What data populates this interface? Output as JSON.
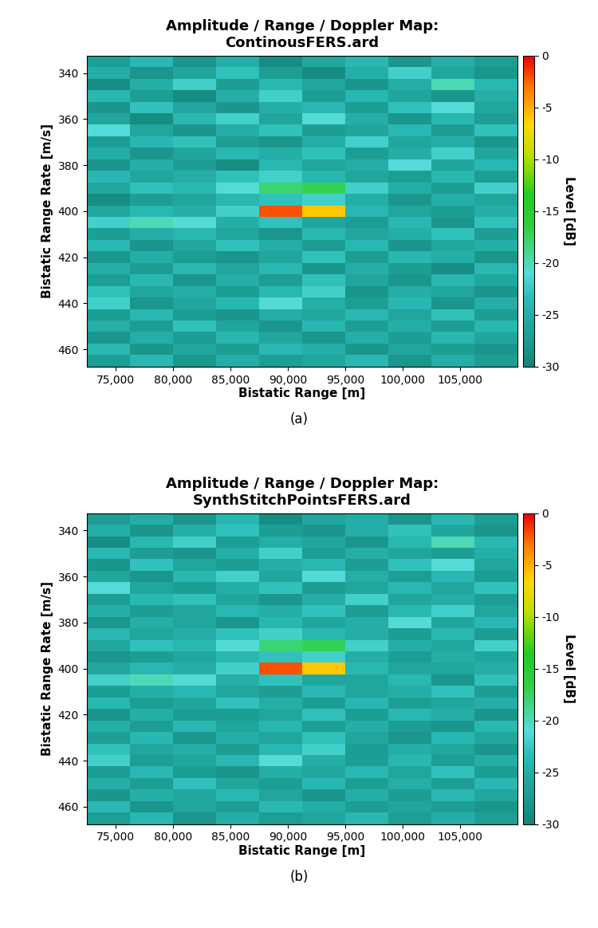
{
  "chart_data": [
    {
      "type": "heatmap",
      "title": "Amplitude / Range / Doppler Map:\nContinousFERS.ard",
      "caption": "(a)",
      "x_label": "Bistatic Range [m]",
      "y_label": "Bistatic Range Rate [m/s]",
      "colorbar_label": "Level [dB]",
      "xlim": [
        72500,
        110000
      ],
      "ylim": [
        467.5,
        332.5
      ],
      "xticks": [
        {
          "value": 75000,
          "label": "75,000"
        },
        {
          "value": 80000,
          "label": "80,000"
        },
        {
          "value": 85000,
          "label": "85,000"
        },
        {
          "value": 90000,
          "label": "90,000"
        },
        {
          "value": 95000,
          "label": "95,000"
        },
        {
          "value": 100000,
          "label": "100,000"
        },
        {
          "value": 105000,
          "label": "105,000"
        }
      ],
      "yticks": [
        340,
        360,
        380,
        400,
        420,
        440,
        460
      ],
      "x_edges": [
        72500,
        76250,
        80000,
        83750,
        87500,
        91250,
        95000,
        98750,
        102500,
        106250,
        110000
      ],
      "y_edges": [
        332.5,
        337.5,
        342.5,
        347.5,
        352.5,
        357.5,
        362.5,
        367.5,
        372.5,
        377.5,
        382.5,
        387.5,
        392.5,
        397.5,
        402.5,
        407.5,
        412.5,
        417.5,
        422.5,
        427.5,
        432.5,
        437.5,
        442.5,
        447.5,
        452.5,
        457.5,
        462.5,
        467.5
      ],
      "cells": [
        [
          -27,
          -24,
          -28,
          -25,
          -29,
          -26,
          -24,
          -28,
          -25,
          -27
        ],
        [
          -25,
          -28,
          -26,
          -23,
          -27,
          -29,
          -25,
          -22,
          -26,
          -28
        ],
        [
          -29,
          -25,
          -22,
          -27,
          -24,
          -26,
          -28,
          -25,
          -20,
          -24
        ],
        [
          -24,
          -27,
          -29,
          -25,
          -22,
          -27,
          -24,
          -26,
          -28,
          -25
        ],
        [
          -28,
          -23,
          -26,
          -28,
          -25,
          -24,
          -27,
          -23,
          -21,
          -26
        ],
        [
          -26,
          -29,
          -24,
          -22,
          -26,
          -21,
          -25,
          -28,
          -24,
          -27
        ],
        [
          -21,
          -26,
          -28,
          -25,
          -23,
          -27,
          -26,
          -24,
          -27,
          -23
        ],
        [
          -27,
          -24,
          -23,
          -27,
          -28,
          -25,
          -22,
          -26,
          -25,
          -28
        ],
        [
          -25,
          -28,
          -26,
          -24,
          -25,
          -23,
          -27,
          -25,
          -22,
          -26
        ],
        [
          -28,
          -25,
          -27,
          -29,
          -24,
          -26,
          -25,
          -21,
          -26,
          -24
        ],
        [
          -24,
          -26,
          -25,
          -23,
          -22,
          -24,
          -26,
          -27,
          -24,
          -27
        ],
        [
          -26,
          -23,
          -24,
          -21,
          -18,
          -17,
          -22,
          -25,
          -27,
          -22
        ],
        [
          -29,
          -27,
          -26,
          -24,
          -23,
          -22,
          -25,
          -28,
          -25,
          -26
        ],
        [
          -26,
          -24,
          -25,
          -22,
          -2,
          -6,
          -24,
          -26,
          -27,
          -25
        ],
        [
          -22,
          -20,
          -21,
          -25,
          -23,
          -26,
          -27,
          -24,
          -28,
          -23
        ],
        [
          -27,
          -25,
          -24,
          -26,
          -28,
          -24,
          -26,
          -25,
          -23,
          -27
        ],
        [
          -24,
          -28,
          -26,
          -23,
          -25,
          -27,
          -24,
          -28,
          -26,
          -25
        ],
        [
          -28,
          -25,
          -27,
          -28,
          -26,
          -23,
          -27,
          -24,
          -25,
          -28
        ],
        [
          -25,
          -27,
          -24,
          -26,
          -24,
          -28,
          -25,
          -27,
          -29,
          -24
        ],
        [
          -27,
          -24,
          -28,
          -25,
          -27,
          -23,
          -26,
          -28,
          -24,
          -26
        ],
        [
          -23,
          -26,
          -25,
          -27,
          -24,
          -22,
          -28,
          -25,
          -26,
          -28
        ],
        [
          -22,
          -28,
          -26,
          -24,
          -21,
          -25,
          -27,
          -24,
          -28,
          -25
        ],
        [
          -27,
          -24,
          -27,
          -28,
          -25,
          -26,
          -24,
          -26,
          -23,
          -27
        ],
        [
          -25,
          -27,
          -23,
          -26,
          -28,
          -24,
          -27,
          -25,
          -27,
          -24
        ],
        [
          -28,
          -25,
          -27,
          -24,
          -26,
          -28,
          -25,
          -27,
          -24,
          -26
        ],
        [
          -24,
          -28,
          -26,
          -27,
          -24,
          -25,
          -28,
          -26,
          -27,
          -28
        ],
        [
          -27,
          -24,
          -28,
          -25,
          -27,
          -26,
          -24,
          -28,
          -25,
          -27
        ]
      ],
      "colorbar_range": [
        -30,
        0
      ],
      "colorbar_ticks": [
        0,
        -5,
        -10,
        -15,
        -20,
        -25,
        -30
      ]
    },
    {
      "type": "heatmap",
      "title": "Amplitude / Range / Doppler Map:\nSynthStitchPointsFERS.ard",
      "caption": "(b)",
      "x_label": "Bistatic Range [m]",
      "y_label": "Bistatic Range Rate [m/s]",
      "colorbar_label": "Level [dB]",
      "xlim": [
        72500,
        110000
      ],
      "ylim": [
        467.5,
        332.5
      ],
      "xticks": [
        {
          "value": 75000,
          "label": "75,000"
        },
        {
          "value": 80000,
          "label": "80,000"
        },
        {
          "value": 85000,
          "label": "85,000"
        },
        {
          "value": 90000,
          "label": "90,000"
        },
        {
          "value": 95000,
          "label": "95,000"
        },
        {
          "value": 100000,
          "label": "100,000"
        },
        {
          "value": 105000,
          "label": "105,000"
        }
      ],
      "yticks": [
        340,
        360,
        380,
        400,
        420,
        440,
        460
      ],
      "x_edges": [
        72500,
        76250,
        80000,
        83750,
        87500,
        91250,
        95000,
        98750,
        102500,
        106250,
        110000
      ],
      "y_edges": [
        332.5,
        337.5,
        342.5,
        347.5,
        352.5,
        357.5,
        362.5,
        367.5,
        372.5,
        377.5,
        382.5,
        387.5,
        392.5,
        397.5,
        402.5,
        407.5,
        412.5,
        417.5,
        422.5,
        427.5,
        432.5,
        437.5,
        442.5,
        447.5,
        452.5,
        457.5,
        462.5,
        467.5
      ],
      "cells": [
        [
          -27,
          -25,
          -28,
          -24,
          -29,
          -26,
          -25,
          -28,
          -24,
          -27
        ],
        [
          -25,
          -28,
          -25,
          -23,
          -27,
          -28,
          -25,
          -23,
          -26,
          -28
        ],
        [
          -29,
          -24,
          -22,
          -27,
          -25,
          -26,
          -28,
          -24,
          -20,
          -24
        ],
        [
          -24,
          -27,
          -28,
          -25,
          -22,
          -27,
          -25,
          -26,
          -27,
          -25
        ],
        [
          -28,
          -23,
          -26,
          -27,
          -25,
          -24,
          -27,
          -23,
          -21,
          -26
        ],
        [
          -26,
          -28,
          -24,
          -22,
          -26,
          -21,
          -25,
          -27,
          -24,
          -27
        ],
        [
          -21,
          -26,
          -27,
          -25,
          -23,
          -27,
          -26,
          -24,
          -26,
          -23
        ],
        [
          -27,
          -24,
          -23,
          -26,
          -28,
          -25,
          -22,
          -26,
          -25,
          -27
        ],
        [
          -25,
          -27,
          -26,
          -24,
          -25,
          -23,
          -27,
          -24,
          -22,
          -26
        ],
        [
          -28,
          -25,
          -26,
          -28,
          -24,
          -26,
          -25,
          -21,
          -26,
          -24
        ],
        [
          -24,
          -26,
          -25,
          -23,
          -22,
          -24,
          -25,
          -27,
          -24,
          -27
        ],
        [
          -26,
          -23,
          -24,
          -21,
          -18,
          -17,
          -22,
          -25,
          -26,
          -22
        ],
        [
          -28,
          -27,
          -26,
          -24,
          -23,
          -22,
          -25,
          -27,
          -25,
          -26
        ],
        [
          -26,
          -24,
          -25,
          -22,
          -2,
          -6,
          -24,
          -26,
          -26,
          -25
        ],
        [
          -22,
          -20,
          -21,
          -25,
          -23,
          -26,
          -26,
          -24,
          -28,
          -23
        ],
        [
          -27,
          -25,
          -24,
          -26,
          -27,
          -24,
          -26,
          -25,
          -23,
          -27
        ],
        [
          -24,
          -27,
          -26,
          -23,
          -25,
          -27,
          -24,
          -27,
          -26,
          -25
        ],
        [
          -28,
          -25,
          -27,
          -27,
          -26,
          -23,
          -27,
          -24,
          -25,
          -28
        ],
        [
          -25,
          -27,
          -24,
          -26,
          -24,
          -27,
          -25,
          -27,
          -28,
          -24
        ],
        [
          -27,
          -24,
          -28,
          -25,
          -26,
          -23,
          -26,
          -28,
          -24,
          -26
        ],
        [
          -23,
          -26,
          -25,
          -27,
          -24,
          -22,
          -27,
          -25,
          -26,
          -28
        ],
        [
          -22,
          -27,
          -26,
          -24,
          -21,
          -25,
          -27,
          -24,
          -27,
          -25
        ],
        [
          -27,
          -24,
          -27,
          -28,
          -25,
          -26,
          -24,
          -26,
          -23,
          -27
        ],
        [
          -25,
          -27,
          -23,
          -26,
          -27,
          -24,
          -27,
          -25,
          -27,
          -24
        ],
        [
          -28,
          -25,
          -26,
          -24,
          -26,
          -28,
          -25,
          -27,
          -24,
          -26
        ],
        [
          -24,
          -28,
          -26,
          -27,
          -24,
          -25,
          -27,
          -26,
          -27,
          -28
        ],
        [
          -27,
          -24,
          -28,
          -25,
          -27,
          -26,
          -24,
          -27,
          -25,
          -27
        ]
      ],
      "colorbar_range": [
        -30,
        0
      ],
      "colorbar_ticks": [
        0,
        -5,
        -10,
        -15,
        -20,
        -25,
        -30
      ]
    }
  ]
}
